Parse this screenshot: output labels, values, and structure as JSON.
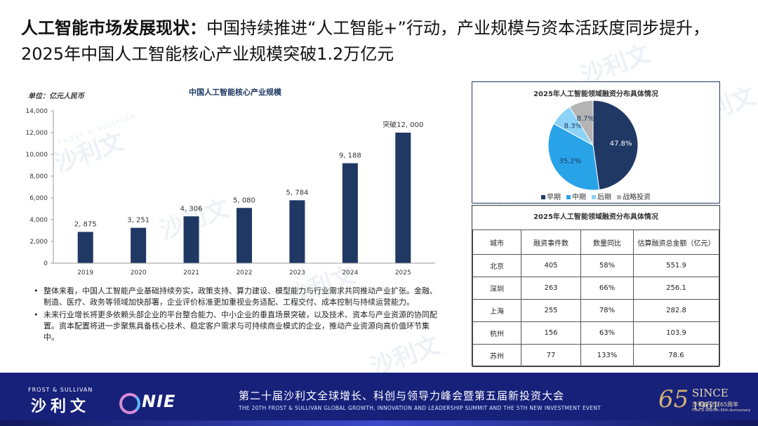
{
  "headline": {
    "bold_part": "人工智能市场发展现状：",
    "rest": "中国持续推进“人工智能+”行动，产业规模与资本活跃度同步提升，2025年中国人工智能核心产业规模突破1.2万亿元"
  },
  "watermark": {
    "cn": "沙利文",
    "en": "FROST & SULLIVAN"
  },
  "chart_data": [
    {
      "type": "bar",
      "title": "中国人工智能核心产业规模",
      "unit_label": "单位：亿元人民币",
      "categories": [
        "2019",
        "2020",
        "2021",
        "2022",
        "2023",
        "2024",
        "2025"
      ],
      "values": [
        2875,
        3251,
        4306,
        5080,
        5784,
        9188,
        12000
      ],
      "value_labels": [
        "2, 875",
        "3, 251",
        "4, 306",
        "5, 080",
        "5, 784",
        "9, 188",
        "突破12, 000"
      ],
      "ylim": [
        0,
        14000
      ],
      "yticks": [
        "0",
        "2,000",
        "4,000",
        "6,000",
        "8,000",
        "10,000",
        "12,000",
        "14,000"
      ],
      "ytick_values": [
        0,
        2000,
        4000,
        6000,
        8000,
        10000,
        12000,
        14000
      ],
      "xlabel": "",
      "ylabel": "",
      "grid": false,
      "color": "#1f3864"
    },
    {
      "type": "pie",
      "title": "2025年人工智能领域融资分布具体情况",
      "categories": [
        "早期",
        "中期",
        "后期",
        "战略投资"
      ],
      "values": [
        47.8,
        35.2,
        8.3,
        8.7
      ],
      "value_labels": [
        "47.8%",
        "35.2%",
        "8.3%",
        "8.7%"
      ],
      "colors": [
        "#1f3864",
        "#29a3e8",
        "#8dd3f7",
        "#b4b4b4"
      ],
      "legend_position": "bottom"
    },
    {
      "type": "table",
      "title": "2025年人工智能领域融资分布具体情况",
      "columns": [
        "城市",
        "融资事件数",
        "数量同比",
        "估算融资总金额（亿元）"
      ],
      "rows": [
        [
          "北京",
          "405",
          "58%",
          "551.9"
        ],
        [
          "深圳",
          "263",
          "66%",
          "256.1"
        ],
        [
          "上海",
          "255",
          "78%",
          "282.8"
        ],
        [
          "杭州",
          "156",
          "63%",
          "103.9"
        ],
        [
          "苏州",
          "77",
          "133%",
          "78.6"
        ]
      ]
    }
  ],
  "bullets": [
    "整体来看，中国人工智能产业基础持续夯实，政策支持、算力建设、模型能力与行业需求共同推动产业扩张。金融、制造、医疗、政务等领域加快部署，企业评价标准更加重视业务适配、工程交付、成本控制与持续运营能力。",
    "未来行业增长将更多依赖头部企业的平台整合能力、中小企业的垂直场景突破，以及技术、资本与产业资源的协同配置。资本配置将进一步聚焦具备核心技术、稳定客户需求与可持续商业模式的企业，推动产业资源向高价值环节集中。"
  ],
  "bullet_symbol": "•",
  "footer": {
    "brand_en": "FROST & SULLIVAN",
    "brand_cn": "沙利文",
    "nie": "NIE",
    "summit_cn": "第二十届沙利文全球增长、科创与领导力峰会暨第五届新投资大会",
    "summit_en": "THE 20TH FROST & SULLIVAN GLOBAL GROWTH, INNOVATION AND LEADERSHIP SUMMIT AND THE 5TH NEW INVESTMENT EVENT",
    "anniv_number": "65",
    "since": "SINCE 1961",
    "anniv_cn": "沙利文全球65周年",
    "anniv_en": "Frost & Sullivan 65th Anniversary"
  }
}
